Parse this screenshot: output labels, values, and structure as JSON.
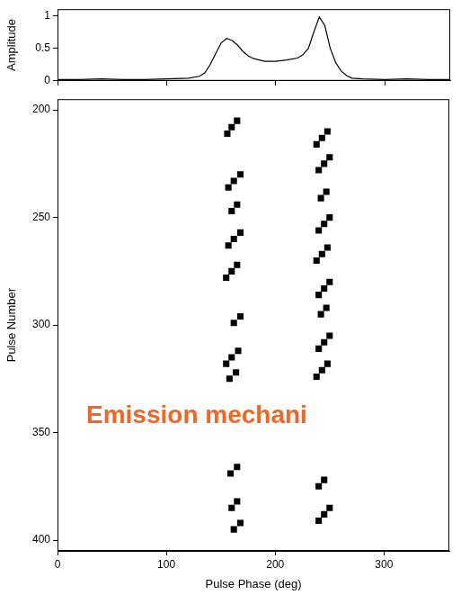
{
  "chart_data": [
    {
      "type": "line",
      "x": [
        0,
        20,
        40,
        60,
        80,
        100,
        120,
        130,
        135,
        140,
        145,
        150,
        155,
        160,
        165,
        170,
        175,
        180,
        185,
        190,
        200,
        210,
        220,
        225,
        230,
        235,
        240,
        245,
        250,
        255,
        260,
        265,
        270,
        280,
        300,
        320,
        340,
        360
      ],
      "values": [
        0.02,
        0.02,
        0.03,
        0.02,
        0.02,
        0.03,
        0.04,
        0.07,
        0.12,
        0.25,
        0.42,
        0.58,
        0.65,
        0.62,
        0.55,
        0.45,
        0.38,
        0.34,
        0.32,
        0.3,
        0.3,
        0.32,
        0.35,
        0.4,
        0.5,
        0.75,
        0.98,
        0.85,
        0.5,
        0.28,
        0.15,
        0.08,
        0.04,
        0.03,
        0.02,
        0.03,
        0.02,
        0.02
      ],
      "color": "#000000",
      "y_label": "Amplitude",
      "xlim": [
        0,
        360
      ],
      "xticks": [
        0,
        100,
        200,
        300
      ],
      "ylim": [
        0,
        1.1
      ],
      "yticks": [
        0,
        0.5,
        1
      ],
      "tick_labels": "y",
      "grid": false
    },
    {
      "type": "scatter",
      "x_label": "Pulse Phase (deg)",
      "y_label": "Pulse Number",
      "annotation": "Emission mechani",
      "color": "#000000",
      "marker": "square",
      "xlim": [
        0,
        360
      ],
      "xticks": [
        0,
        100,
        200,
        300
      ],
      "ylim": [
        405,
        195
      ],
      "yticks": [
        200,
        250,
        300,
        350,
        400
      ],
      "grid": false,
      "points": [
        [
          165,
          205
        ],
        [
          160,
          208
        ],
        [
          156,
          211
        ],
        [
          168,
          230
        ],
        [
          162,
          233
        ],
        [
          157,
          236
        ],
        [
          165,
          244
        ],
        [
          160,
          247
        ],
        [
          168,
          257
        ],
        [
          162,
          260
        ],
        [
          157,
          263
        ],
        [
          165,
          272
        ],
        [
          160,
          275
        ],
        [
          155,
          278
        ],
        [
          168,
          296
        ],
        [
          162,
          299
        ],
        [
          166,
          312
        ],
        [
          160,
          315
        ],
        [
          155,
          318
        ],
        [
          164,
          322
        ],
        [
          158,
          325
        ],
        [
          165,
          366
        ],
        [
          159,
          369
        ],
        [
          165,
          382
        ],
        [
          160,
          385
        ],
        [
          168,
          392
        ],
        [
          162,
          395
        ],
        [
          248,
          210
        ],
        [
          243,
          213
        ],
        [
          238,
          216
        ],
        [
          250,
          222
        ],
        [
          245,
          225
        ],
        [
          240,
          228
        ],
        [
          247,
          238
        ],
        [
          242,
          241
        ],
        [
          250,
          250
        ],
        [
          245,
          253
        ],
        [
          240,
          256
        ],
        [
          248,
          264
        ],
        [
          243,
          267
        ],
        [
          238,
          270
        ],
        [
          250,
          280
        ],
        [
          245,
          283
        ],
        [
          240,
          286
        ],
        [
          247,
          292
        ],
        [
          242,
          295
        ],
        [
          250,
          305
        ],
        [
          245,
          308
        ],
        [
          240,
          311
        ],
        [
          248,
          318
        ],
        [
          243,
          321
        ],
        [
          238,
          324
        ],
        [
          245,
          372
        ],
        [
          240,
          375
        ],
        [
          250,
          385
        ],
        [
          245,
          388
        ],
        [
          240,
          391
        ]
      ]
    }
  ]
}
